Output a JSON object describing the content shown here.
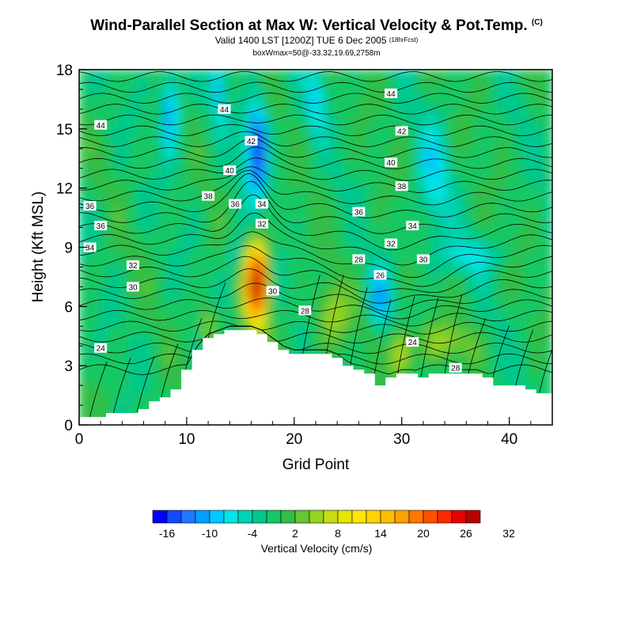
{
  "header": {
    "title": "Wind-Parallel Section at Max W: Vertical Velocity & Pot.Temp.",
    "title_flag": "(C)",
    "valid": "Valid 1400 LST [1200Z] TUE 6 Dec 2005",
    "forecast": "(18hrFcst)",
    "box_info": "boxWmax=50@-33.32,19.69,2758m"
  },
  "chart_data": {
    "type": "heatmap",
    "xlabel": "Grid Point",
    "ylabel": "Height (Kft MSL)",
    "xlim": [
      0,
      44
    ],
    "ylim": [
      0,
      18
    ],
    "x_ticks": [
      0,
      10,
      20,
      30,
      40
    ],
    "y_ticks": [
      0,
      3,
      6,
      9,
      12,
      15,
      18
    ],
    "colorbar": {
      "label": "Vertical Velocity (cm/s)",
      "range": [
        -19,
        35
      ],
      "tick_labels": [
        "-16",
        "-10",
        "-4",
        "2",
        "8",
        "14",
        "20",
        "26",
        "32"
      ],
      "colors": [
        "#0000ff",
        "#1448ff",
        "#1e78ff",
        "#00a0ff",
        "#00c8ff",
        "#00e6e6",
        "#00d2b4",
        "#00c88c",
        "#14c864",
        "#32be46",
        "#64c832",
        "#96d21e",
        "#c8dc14",
        "#e6e600",
        "#ffe600",
        "#ffd200",
        "#ffbe00",
        "#ffa000",
        "#ff7800",
        "#ff5000",
        "#ff2800",
        "#e60000",
        "#b40000"
      ]
    },
    "terrain_height_kft": [
      0.4,
      0.4,
      0.4,
      0.6,
      0.6,
      0.6,
      0.8,
      1.2,
      1.4,
      1.8,
      2.8,
      3.8,
      4.4,
      4.6,
      4.8,
      4.8,
      4.8,
      4.6,
      4.2,
      3.8,
      3.6,
      3.6,
      3.6,
      3.6,
      3.4,
      3.0,
      2.8,
      2.6,
      2.0,
      2.4,
      2.6,
      2.6,
      2.4,
      2.6,
      2.6,
      2.6,
      2.6,
      2.6,
      2.4,
      2.0,
      2.0,
      2.0,
      1.8,
      1.6,
      1.6
    ],
    "updraft_core": {
      "x": 16,
      "height_kft": 7.2,
      "max_cm_s": 35
    },
    "downdraft_core": {
      "x": 16.5,
      "height_kft": 14,
      "min_cm_s": -19
    },
    "theta_contour_labels": [
      {
        "value": "44",
        "x": 29,
        "y": 16.8
      },
      {
        "value": "44",
        "x": 13.5,
        "y": 16.0
      },
      {
        "value": "44",
        "x": 2,
        "y": 15.2
      },
      {
        "value": "42",
        "x": 30,
        "y": 14.9
      },
      {
        "value": "42",
        "x": 16,
        "y": 14.4
      },
      {
        "value": "40",
        "x": 29,
        "y": 13.3
      },
      {
        "value": "40",
        "x": 14,
        "y": 12.9
      },
      {
        "value": "38",
        "x": 30,
        "y": 12.1
      },
      {
        "value": "38",
        "x": 12,
        "y": 11.6
      },
      {
        "value": "36",
        "x": 14.5,
        "y": 11.2
      },
      {
        "value": "36",
        "x": 1,
        "y": 11.1
      },
      {
        "value": "36",
        "x": 26,
        "y": 10.8
      },
      {
        "value": "36",
        "x": 2,
        "y": 10.1
      },
      {
        "value": "34",
        "x": 17,
        "y": 11.2
      },
      {
        "value": "34",
        "x": 31,
        "y": 10.1
      },
      {
        "value": "34",
        "x": 1,
        "y": 9.0
      },
      {
        "value": "32",
        "x": 17,
        "y": 10.2
      },
      {
        "value": "32",
        "x": 29,
        "y": 9.2
      },
      {
        "value": "32",
        "x": 5,
        "y": 8.1
      },
      {
        "value": "30",
        "x": 32,
        "y": 8.4
      },
      {
        "value": "30",
        "x": 5,
        "y": 7.0
      },
      {
        "value": "30",
        "x": 18,
        "y": 6.8
      },
      {
        "value": "28",
        "x": 26,
        "y": 8.4
      },
      {
        "value": "28",
        "x": 21,
        "y": 5.8
      },
      {
        "value": "28",
        "x": 35,
        "y": 2.9
      },
      {
        "value": "26",
        "x": 28,
        "y": 7.6
      },
      {
        "value": "24",
        "x": 2,
        "y": 3.9
      },
      {
        "value": "24",
        "x": 31,
        "y": 4.2
      }
    ]
  }
}
